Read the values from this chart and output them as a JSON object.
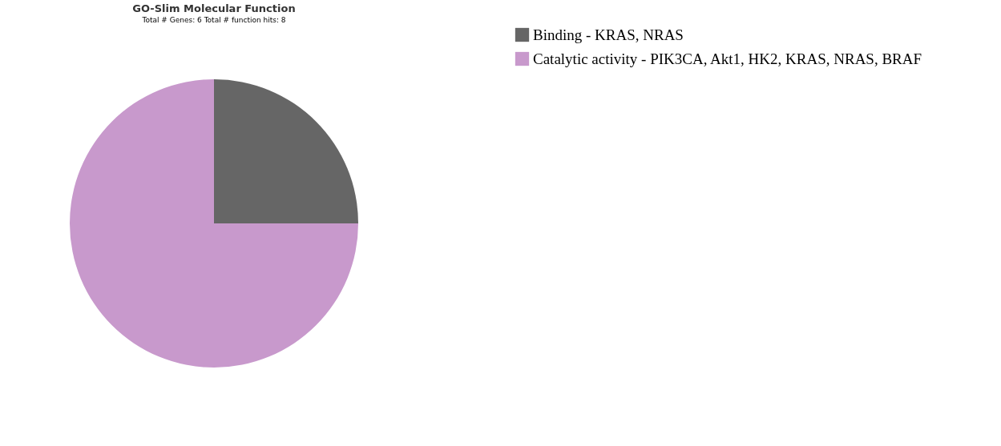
{
  "chart_data": {
    "type": "pie",
    "title": "GO-Slim Molecular Function",
    "subtitle": "Total # Genes: 6    Total # function hits: 8",
    "categories": [
      "Binding - KRAS, NRAS",
      "Catalytic activity - PIK3CA, Akt1, HK2, KRAS, NRAS, BRAF"
    ],
    "values": [
      25,
      75
    ],
    "colors": [
      "#666666",
      "#c899cc"
    ],
    "legend": "right"
  }
}
